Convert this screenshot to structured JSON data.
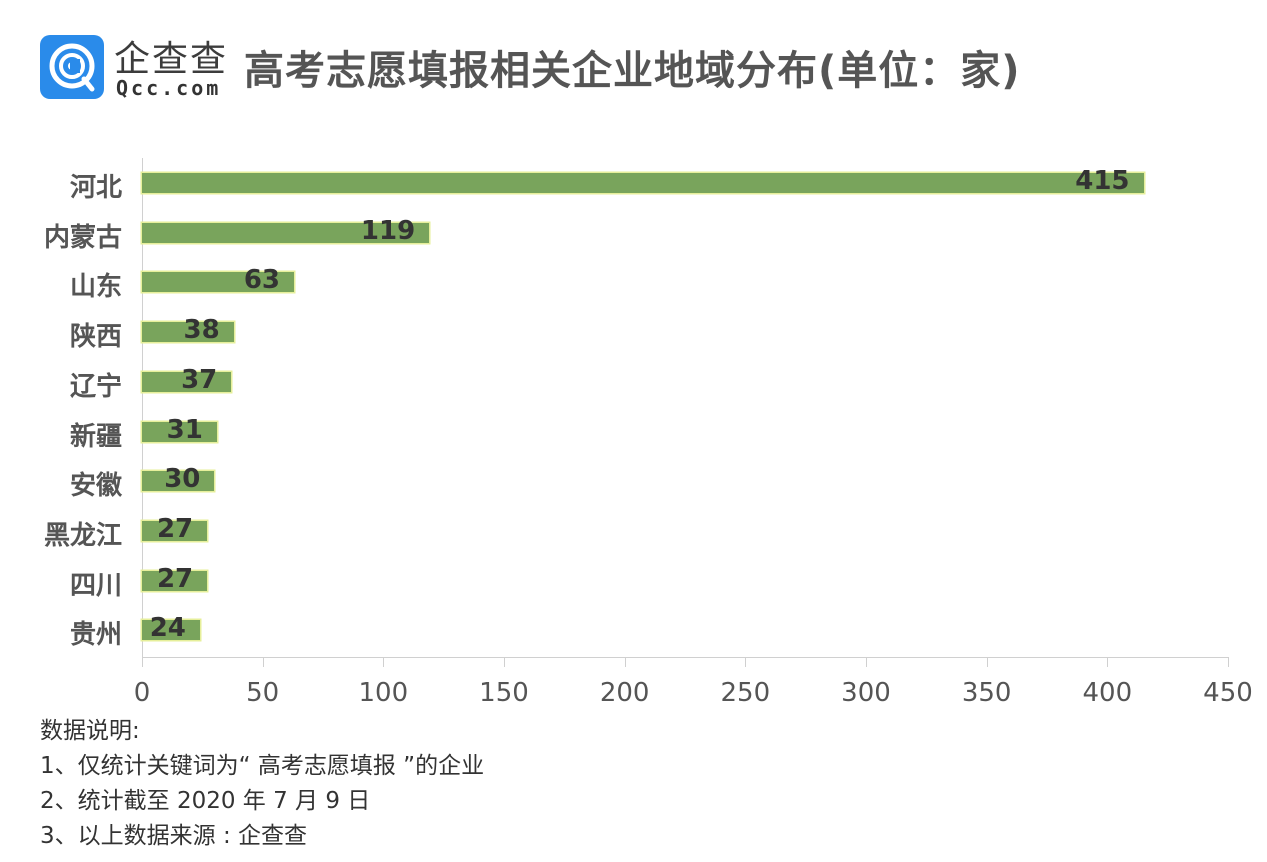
{
  "header": {
    "logo_cn": "企查查",
    "logo_en": "Qcc.com",
    "title": "高考志愿填报相关企业地域分布(单位：家)"
  },
  "colors": {
    "bar": "#79a45c",
    "bar_border": "#e6ef9a",
    "logo_bg": "#2a8bea"
  },
  "chart_data": {
    "type": "bar",
    "orientation": "horizontal",
    "title": "高考志愿填报相关企业地域分布(单位：家)",
    "xlabel": "",
    "ylabel": "",
    "categories": [
      "河北",
      "内蒙古",
      "山东",
      "陕西",
      "辽宁",
      "新疆",
      "安徽",
      "黑龙江",
      "四川",
      "贵州"
    ],
    "values": [
      415,
      119,
      63,
      38,
      37,
      31,
      30,
      27,
      27,
      24
    ],
    "xlim": [
      0,
      450
    ],
    "xticks": [
      "0",
      "50",
      "100",
      "150",
      "200",
      "250",
      "300",
      "350",
      "400",
      "450"
    ],
    "grid": false,
    "legend": null,
    "data_labels": true
  },
  "notes": {
    "heading": "数据说明:",
    "lines": [
      "1、仅统计关键词为“ 高考志愿填报 ”的企业",
      "2、统计截至 2020 年 7 月 9 日",
      "3、以上数据来源 : 企查查"
    ]
  }
}
